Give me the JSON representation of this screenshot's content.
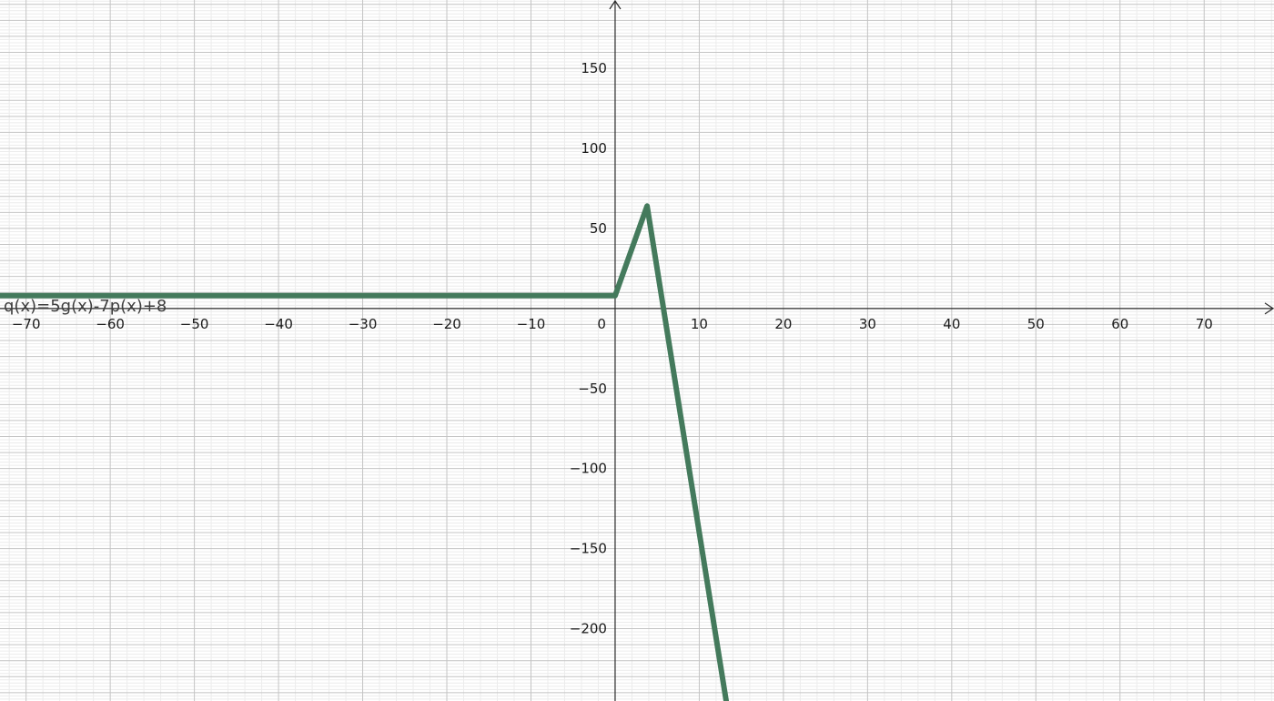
{
  "chart_data": {
    "type": "line",
    "title": "",
    "xlabel": "",
    "ylabel": "",
    "xlim": [
      -73.1,
      78.3
    ],
    "ylim": [
      -245.2,
      192.7
    ],
    "x_ticks": [
      -70,
      -60,
      -50,
      -40,
      -30,
      -20,
      -10,
      0,
      10,
      20,
      30,
      40,
      50,
      60,
      70
    ],
    "y_ticks": [
      -200,
      -150,
      -100,
      -50,
      50,
      100,
      150
    ],
    "x_tick_labels": [
      "−70",
      "−60",
      "−50",
      "−40",
      "−30",
      "−20",
      "−10",
      "0",
      "10",
      "20",
      "30",
      "40",
      "50",
      "60",
      "70"
    ],
    "y_tick_labels": [
      "−200",
      "−150",
      "−100",
      "−50",
      "50",
      "100",
      "150"
    ],
    "major_step": 10,
    "minor_step": 2,
    "grid": true,
    "series": [
      {
        "name": "q(x)=5g(x)-7p(x)+8",
        "color": "#447a5c",
        "points": [
          [
            -73.1,
            8
          ],
          [
            0,
            8
          ],
          [
            3.8,
            64
          ],
          [
            13.2,
            -245.2
          ]
        ]
      }
    ]
  }
}
